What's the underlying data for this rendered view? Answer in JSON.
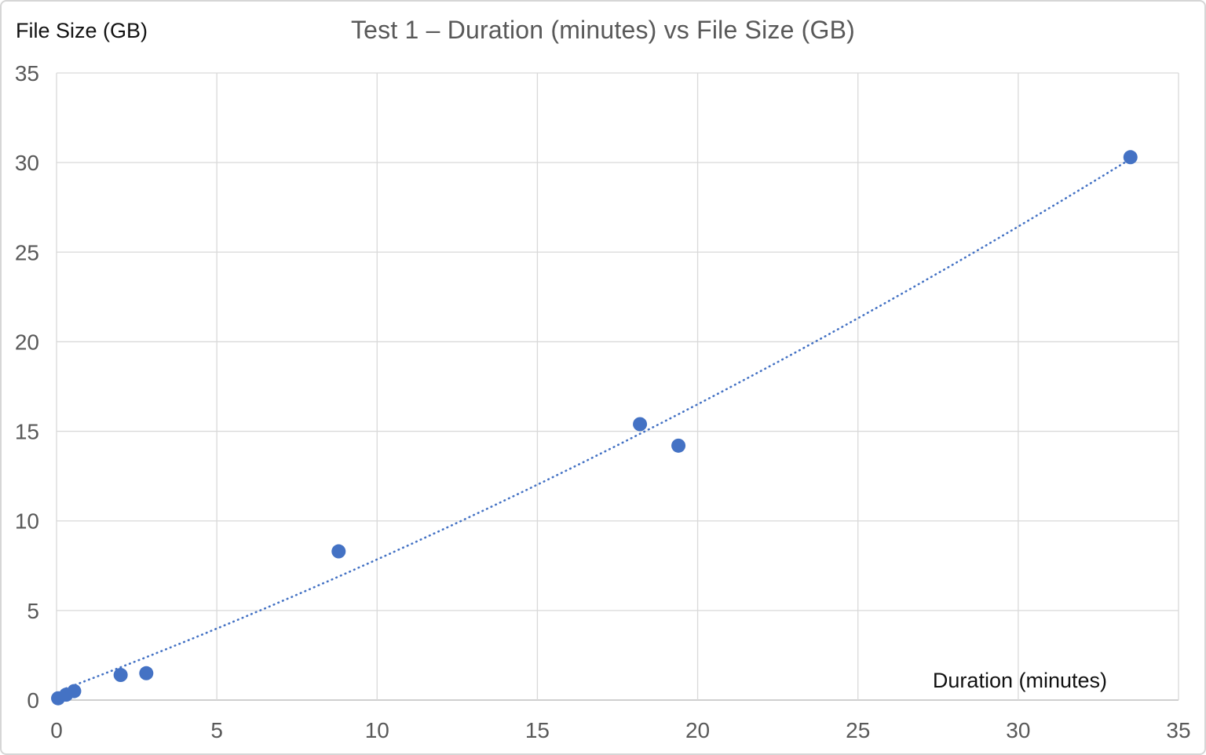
{
  "chart_data": {
    "type": "scatter",
    "title": "Test 1 – Duration (minutes) vs File Size (GB)",
    "xlabel": "Duration (minutes)",
    "ylabel": "File Size (GB)",
    "xlim": [
      0,
      35
    ],
    "ylim": [
      0,
      35
    ],
    "x_ticks": [
      0,
      5,
      10,
      15,
      20,
      25,
      30,
      35
    ],
    "y_ticks": [
      0,
      5,
      10,
      15,
      20,
      25,
      30,
      35
    ],
    "grid": true,
    "legend": false,
    "series": [
      {
        "name": "File Size (GB)",
        "points": [
          [
            0.05,
            0.1
          ],
          [
            0.3,
            0.3
          ],
          [
            0.55,
            0.5
          ],
          [
            2.0,
            1.4
          ],
          [
            2.8,
            1.5
          ],
          [
            8.8,
            8.3
          ],
          [
            18.2,
            15.4
          ],
          [
            19.4,
            14.2
          ],
          [
            33.5,
            30.3
          ]
        ],
        "marker_color": "#4472c4",
        "marker_radius": 9
      }
    ],
    "trendline": {
      "kind": "quadratic",
      "coeffs": [
        0.0063,
        0.677,
        0.45
      ],
      "x_start": 0.3,
      "x_end": 33.5,
      "color": "#4472c4",
      "style": "dotted"
    },
    "colors": {
      "grid": "#d9d9d9",
      "axis_line": "#cfcfcf",
      "tick_label": "#595959",
      "title": "#595959",
      "axis_title": "#111111",
      "background": "#ffffff",
      "border": "#d6d6d6"
    }
  }
}
